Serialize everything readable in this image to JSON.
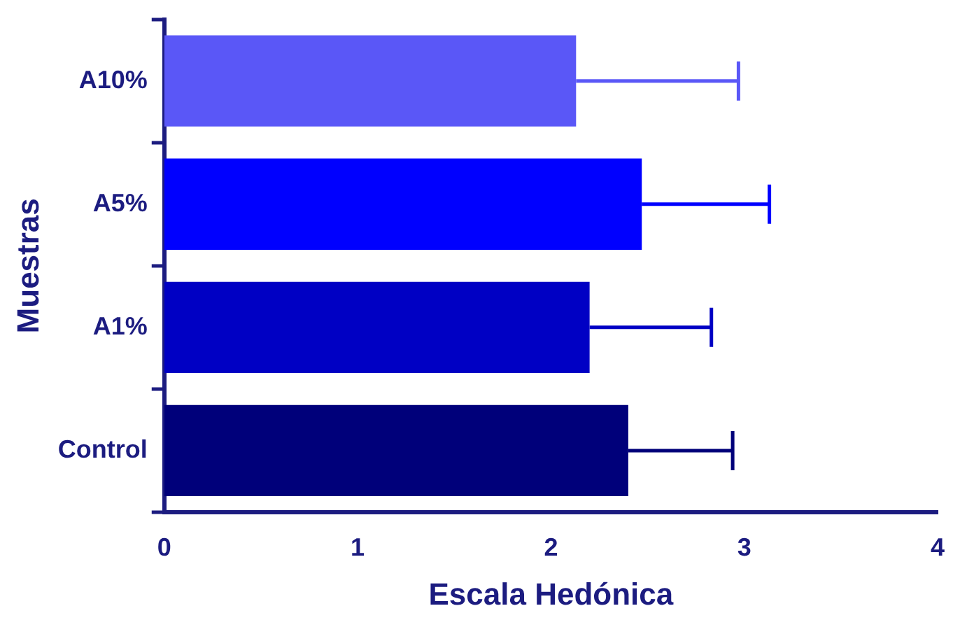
{
  "chart_data": {
    "type": "bar",
    "orientation": "horizontal",
    "xlabel": "Escala Hedónica",
    "ylabel": "Muestras",
    "categories": [
      "A10%",
      "A5%",
      "A1%",
      "Control"
    ],
    "values": [
      2.13,
      2.47,
      2.2,
      2.4
    ],
    "colors": [
      "#5a57f7",
      "#0000ff",
      "#0000c4",
      "#00007a"
    ],
    "errors": [
      [
        2.13,
        2.97
      ],
      [
        2.47,
        3.13
      ],
      [
        2.2,
        2.83
      ],
      [
        2.4,
        2.94
      ]
    ],
    "xlim": [
      0,
      4
    ],
    "xticks": [
      0,
      1,
      2,
      3,
      4
    ],
    "grid": false,
    "legend": false
  }
}
